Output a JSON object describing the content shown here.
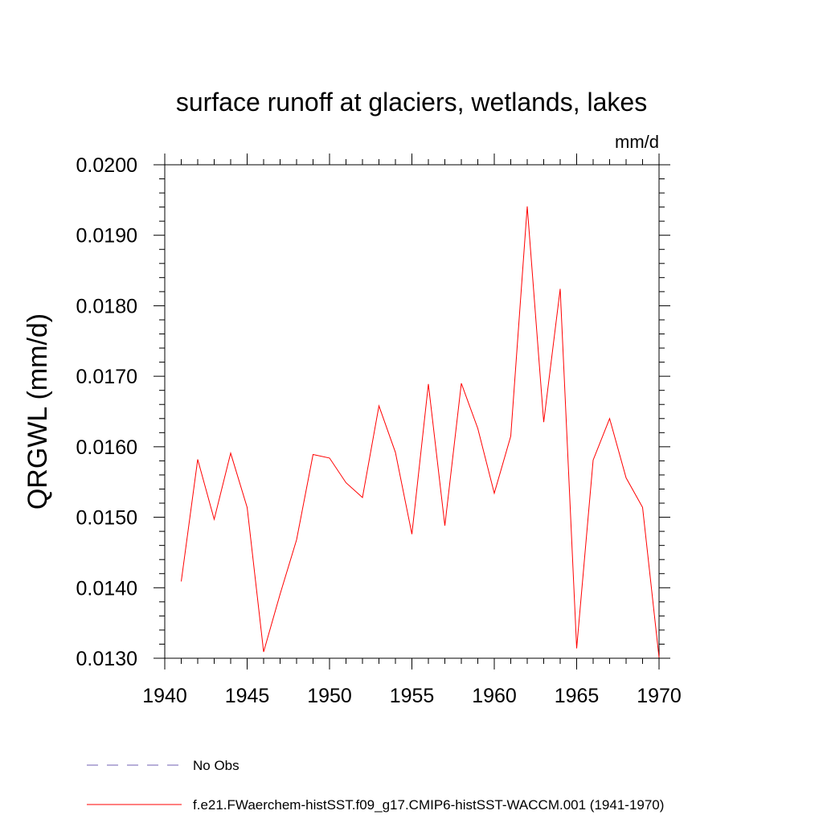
{
  "chart_data": {
    "type": "line",
    "title": "surface runoff at glaciers, wetlands, lakes",
    "units_label": "mm/d",
    "xlabel": "",
    "ylabel": "QRGWL  (mm/d)",
    "xlim": [
      1940,
      1970
    ],
    "ylim": [
      0.013,
      0.02
    ],
    "x_ticks": [
      1940,
      1945,
      1950,
      1955,
      1960,
      1965,
      1970
    ],
    "x_tick_labels": [
      "1940",
      "1945",
      "1950",
      "1955",
      "1960",
      "1965",
      "1970"
    ],
    "y_ticks": [
      0.013,
      0.014,
      0.015,
      0.016,
      0.017,
      0.018,
      0.019,
      0.02
    ],
    "y_tick_labels": [
      "0.0130",
      "0.0140",
      "0.0150",
      "0.0160",
      "0.0170",
      "0.0180",
      "0.0190",
      "0.0200"
    ],
    "grid": false,
    "legend_position": "bottom",
    "series": [
      {
        "name": "f.e21.FWaerchem-histSST.f09_g17.CMIP6-histSST-WACCM.001 (1941-1970)",
        "color": "#ff0000",
        "line_style": "solid",
        "x": [
          1941,
          1942,
          1943,
          1944,
          1945,
          1946,
          1947,
          1948,
          1949,
          1950,
          1951,
          1952,
          1953,
          1954,
          1955,
          1956,
          1957,
          1958,
          1959,
          1960,
          1961,
          1962,
          1963,
          1964,
          1965,
          1966,
          1967,
          1968,
          1969,
          1970
        ],
        "y": [
          0.01409,
          0.01582,
          0.01497,
          0.01591,
          0.01514,
          0.01309,
          0.01391,
          0.01468,
          0.01589,
          0.01584,
          0.01549,
          0.01528,
          0.01658,
          0.01592,
          0.01476,
          0.01689,
          0.01488,
          0.0169,
          0.01626,
          0.01534,
          0.01615,
          0.01941,
          0.01635,
          0.01824,
          0.01314,
          0.01581,
          0.0164,
          0.01556,
          0.01514,
          0.01301
        ]
      }
    ],
    "legend": [
      {
        "label": "No Obs",
        "color": "#6f5fb3",
        "line_style": "dashed"
      },
      {
        "label": "f.e21.FWaerchem-histSST.f09_g17.CMIP6-histSST-WACCM.001 (1941-1970)",
        "color": "#ff0000",
        "line_style": "solid"
      }
    ]
  }
}
